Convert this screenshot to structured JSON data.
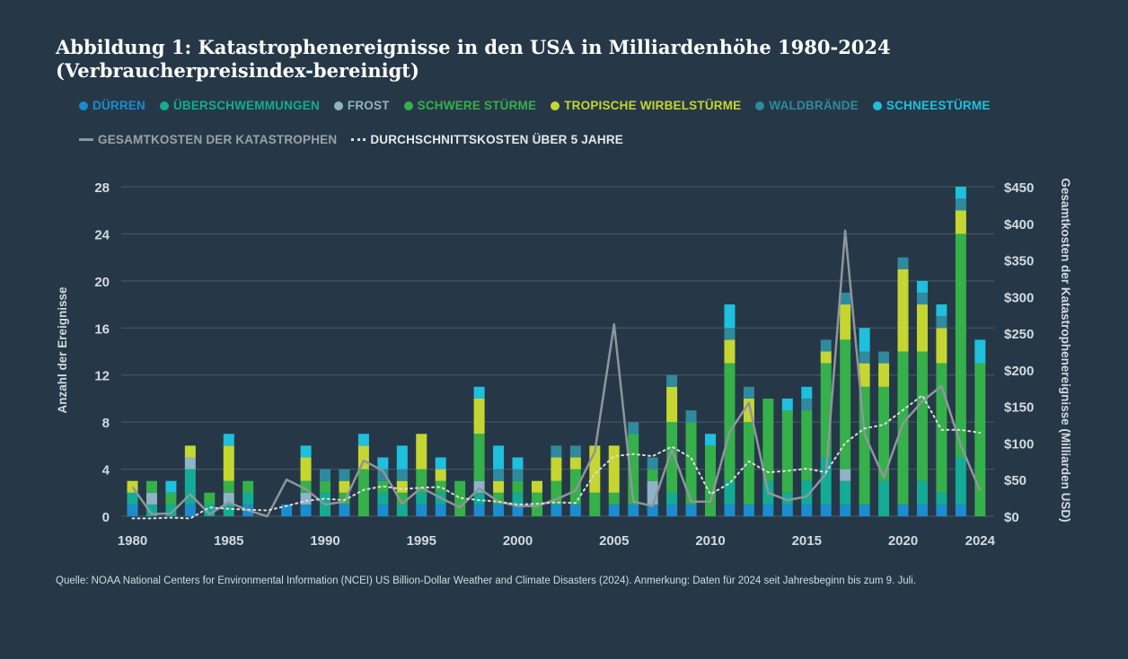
{
  "title_line1": "Abbildung 1: Katastrophenereignisse in den USA in Milliardenhöhe 1980-2024",
  "title_line2": "(Verbraucherpreisindex-bereinigt)",
  "source": "Quelle: NOAA National Centers for Environmental Information (NCEI) US Billion-Dollar Weather and Climate Disasters (2024). Anmerkung: Daten für 2024 seit Jahresbeginn bis zum 9. Juli.",
  "legend": [
    {
      "label": "DÜRREN",
      "color": "#1a8ccf"
    },
    {
      "label": "ÜBERSCHWEMMUNGEN",
      "color": "#13ab96"
    },
    {
      "label": "FROST",
      "color": "#8fb3c6"
    },
    {
      "label": "SCHWERE STÜRME",
      "color": "#35b04a"
    },
    {
      "label": "TROPISCHE WIRBELSTÜRME",
      "color": "#c5d632"
    },
    {
      "label": "WALDBRÄNDE",
      "color": "#2f8a9e"
    },
    {
      "label": "SCHNEESTÜRME",
      "color": "#1ec0dd"
    }
  ],
  "line_legend": [
    {
      "label": "GESAMTKOSTEN DER KATASTROPHEN",
      "color": "#8e969c",
      "style": "solid"
    },
    {
      "label": "DURCHSCHNITTSKOSTEN ÜBER 5 JAHRE",
      "color": "#d9dde0",
      "style": "dotted"
    }
  ],
  "chart_data": {
    "type": "bar",
    "stacked": true,
    "xlabel": "",
    "ylabel": "Anzahl der Ereignisse",
    "y2label": "Gesamtkosten der Katastrophenereignisse (Milliarden USD)",
    "ylim": [
      0,
      28
    ],
    "y2lim": [
      0,
      450
    ],
    "yticks": [
      0,
      4,
      8,
      12,
      16,
      20,
      24,
      28
    ],
    "y2ticks": [
      0,
      50,
      100,
      150,
      200,
      250,
      300,
      350,
      400,
      450
    ],
    "y2tick_labels": [
      "$0",
      "$50",
      "$100",
      "$150",
      "$200",
      "$250",
      "$300",
      "$350",
      "$400",
      "$450"
    ],
    "xticks": [
      1980,
      1985,
      1990,
      1995,
      2000,
      2005,
      2010,
      2015,
      2020,
      2024
    ],
    "categories": [
      1980,
      1981,
      1982,
      1983,
      1984,
      1985,
      1986,
      1987,
      1988,
      1989,
      1990,
      1991,
      1992,
      1993,
      1994,
      1995,
      1996,
      1997,
      1998,
      1999,
      2000,
      2001,
      2002,
      2003,
      2004,
      2005,
      2006,
      2007,
      2008,
      2009,
      2010,
      2011,
      2012,
      2013,
      2014,
      2015,
      2016,
      2017,
      2018,
      2019,
      2020,
      2021,
      2022,
      2023,
      2024
    ],
    "series": [
      {
        "name": "DÜRREN",
        "color": "#1a8ccf",
        "values": [
          1,
          0,
          0,
          1,
          0,
          0,
          1,
          0,
          1,
          1,
          0,
          1,
          0,
          1,
          0,
          1,
          1,
          0,
          1,
          1,
          1,
          0,
          1,
          1,
          0,
          1,
          1,
          1,
          1,
          1,
          0,
          1,
          1,
          1,
          1,
          1,
          1,
          1,
          1,
          0,
          1,
          1,
          1,
          1,
          0
        ]
      },
      {
        "name": "ÜBERSCHWEMMUNGEN",
        "color": "#13ab96",
        "values": [
          1,
          1,
          1,
          3,
          1,
          1,
          1,
          0,
          0,
          0,
          2,
          0,
          0,
          1,
          1,
          1,
          1,
          0,
          1,
          0,
          1,
          0,
          0,
          0,
          0,
          0,
          0,
          0,
          1,
          0,
          0,
          2,
          0,
          2,
          1,
          2,
          4,
          2,
          0,
          3,
          0,
          2,
          1,
          4,
          0
        ]
      },
      {
        "name": "FROST",
        "color": "#8fb3c6",
        "values": [
          0,
          1,
          0,
          1,
          0,
          1,
          0,
          0,
          0,
          1,
          0,
          0,
          0,
          0,
          0,
          0,
          0,
          0,
          1,
          0,
          0,
          0,
          0,
          0,
          0,
          0,
          0,
          2,
          0,
          0,
          0,
          0,
          0,
          0,
          0,
          0,
          0,
          1,
          0,
          0,
          0,
          0,
          0,
          0,
          0
        ]
      },
      {
        "name": "SCHWERE STÜRME",
        "color": "#35b04a",
        "values": [
          0,
          1,
          1,
          0,
          1,
          1,
          1,
          0,
          0,
          1,
          1,
          1,
          4,
          1,
          1,
          2,
          1,
          3,
          4,
          1,
          1,
          2,
          2,
          3,
          2,
          1,
          6,
          1,
          6,
          7,
          6,
          10,
          7,
          7,
          7,
          6,
          8,
          11,
          10,
          8,
          13,
          11,
          11,
          19,
          13
        ]
      },
      {
        "name": "TROPISCHE WIRBELSTÜRME",
        "color": "#c5d632",
        "values": [
          1,
          0,
          0,
          1,
          0,
          3,
          0,
          0,
          0,
          2,
          0,
          1,
          2,
          0,
          1,
          3,
          1,
          0,
          3,
          1,
          0,
          1,
          2,
          1,
          4,
          4,
          0,
          0,
          3,
          0,
          0,
          2,
          2,
          0,
          0,
          0,
          1,
          3,
          2,
          2,
          7,
          4,
          3,
          2,
          0
        ]
      },
      {
        "name": "WALDBRÄNDE",
        "color": "#2f8a9e",
        "values": [
          0,
          0,
          0,
          0,
          0,
          0,
          0,
          0,
          0,
          0,
          1,
          1,
          0,
          1,
          1,
          0,
          0,
          0,
          0,
          1,
          1,
          0,
          1,
          1,
          0,
          0,
          1,
          1,
          1,
          1,
          0,
          1,
          1,
          0,
          0,
          1,
          1,
          1,
          1,
          1,
          1,
          1,
          1,
          1,
          0
        ]
      },
      {
        "name": "SCHNEESTÜRME",
        "color": "#1ec0dd",
        "values": [
          0,
          0,
          1,
          0,
          0,
          1,
          0,
          0,
          0,
          1,
          0,
          0,
          1,
          1,
          2,
          0,
          1,
          0,
          1,
          2,
          1,
          0,
          0,
          0,
          0,
          0,
          0,
          0,
          0,
          0,
          1,
          2,
          0,
          0,
          1,
          1,
          0,
          0,
          2,
          0,
          0,
          1,
          1,
          1,
          2
        ]
      }
    ],
    "lines": [
      {
        "name": "GESAMTKOSTEN DER KATASTROPHEN",
        "axis": "y2",
        "values": [
          40,
          3,
          4,
          30,
          3,
          19,
          8,
          0,
          50,
          37,
          16,
          20,
          76,
          62,
          17,
          39,
          25,
          12,
          38,
          20,
          14,
          14,
          23,
          35,
          88,
          262,
          20,
          14,
          91,
          20,
          20,
          115,
          155,
          32,
          22,
          27,
          58,
          390,
          112,
          53,
          127,
          157,
          178,
          97,
          35
        ]
      },
      {
        "name": "DURCHSCHNITTSKOSTEN ÜBER 5 JAHRE",
        "axis": "y2",
        "values": [
          -3,
          -3,
          -2,
          -3,
          12,
          10,
          9,
          8,
          14,
          21,
          24,
          22,
          36,
          41,
          37,
          39,
          40,
          25,
          22,
          20,
          16,
          17,
          19,
          18,
          58,
          82,
          85,
          82,
          95,
          80,
          30,
          45,
          75,
          60,
          62,
          65,
          60,
          100,
          120,
          125,
          145,
          165,
          118,
          118,
          114
        ]
      }
    ]
  }
}
